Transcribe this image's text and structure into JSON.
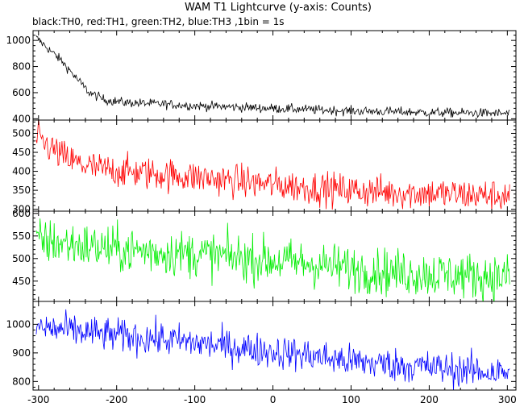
{
  "chart_data": {
    "type": "line",
    "title": "WAM T1 Lightcurve (y-axis: Counts)",
    "subtitle": "black:TH0, red:TH1, green:TH2, blue:TH3 ,1bin = 1s",
    "xlabel": "",
    "ylabel": "",
    "xlim": [
      -307,
      311
    ],
    "x_ticks": [
      -300,
      -200,
      -100,
      0,
      100,
      200,
      300
    ],
    "x_tick_labels": [
      "-300",
      "-200",
      "-100",
      "0",
      "100",
      "200",
      "300"
    ],
    "bin_seconds": 1,
    "grid": false,
    "panels": [
      {
        "series": "TH0",
        "color": "#000000",
        "ylim": [
          390,
          1075
        ],
        "y_ticks": [
          400,
          600,
          800,
          1000
        ],
        "y_tick_labels": [
          "400",
          "600",
          "800",
          "1000"
        ],
        "profile": [
          [
            -303,
            1020
          ],
          [
            -290,
            950
          ],
          [
            -270,
            840
          ],
          [
            -250,
            700
          ],
          [
            -235,
            600
          ],
          [
            -215,
            545
          ],
          [
            -190,
            525
          ],
          [
            -150,
            515
          ],
          [
            -100,
            500
          ],
          [
            -50,
            490
          ],
          [
            0,
            480
          ],
          [
            50,
            470
          ],
          [
            100,
            460
          ],
          [
            150,
            455
          ],
          [
            200,
            448
          ],
          [
            250,
            445
          ],
          [
            303,
            440
          ]
        ],
        "noise": 18
      },
      {
        "series": "TH1",
        "color": "#ff0000",
        "ylim": [
          295,
          535
        ],
        "y_ticks": [
          300,
          350,
          400,
          450,
          500
        ],
        "y_tick_labels": [
          "300",
          "350",
          "400",
          "450",
          "500"
        ],
        "profile": [
          [
            -303,
            490
          ],
          [
            -290,
            470
          ],
          [
            -270,
            440
          ],
          [
            -250,
            420
          ],
          [
            -220,
            405
          ],
          [
            -150,
            393
          ],
          [
            -100,
            385
          ],
          [
            -50,
            375
          ],
          [
            0,
            365
          ],
          [
            50,
            357
          ],
          [
            100,
            350
          ],
          [
            150,
            345
          ],
          [
            200,
            342
          ],
          [
            250,
            338
          ],
          [
            303,
            335
          ]
        ],
        "noise": 22
      },
      {
        "series": "TH2",
        "color": "#00ee00",
        "ylim": [
          405,
          605
        ],
        "y_ticks": [
          450,
          500,
          550,
          600
        ],
        "y_tick_labels": [
          "450",
          "500",
          "550",
          "600"
        ],
        "profile": [
          [
            -303,
            540
          ],
          [
            -250,
            530
          ],
          [
            -200,
            520
          ],
          [
            -150,
            515
          ],
          [
            -100,
            510
          ],
          [
            -50,
            503
          ],
          [
            0,
            495
          ],
          [
            50,
            488
          ],
          [
            100,
            478
          ],
          [
            150,
            470
          ],
          [
            200,
            466
          ],
          [
            250,
            462
          ],
          [
            303,
            458
          ]
        ],
        "noise": 26
      },
      {
        "series": "TH3",
        "color": "#0000ff",
        "ylim": [
          770,
          1080
        ],
        "y_ticks": [
          800,
          900,
          1000
        ],
        "y_tick_labels": [
          "800",
          "900",
          "1000"
        ],
        "profile": [
          [
            -303,
            990
          ],
          [
            -250,
            975
          ],
          [
            -200,
            960
          ],
          [
            -150,
            950
          ],
          [
            -100,
            935
          ],
          [
            -50,
            920
          ],
          [
            0,
            905
          ],
          [
            50,
            890
          ],
          [
            100,
            870
          ],
          [
            150,
            860
          ],
          [
            200,
            850
          ],
          [
            250,
            838
          ],
          [
            303,
            830
          ]
        ],
        "noise": 30
      }
    ]
  }
}
